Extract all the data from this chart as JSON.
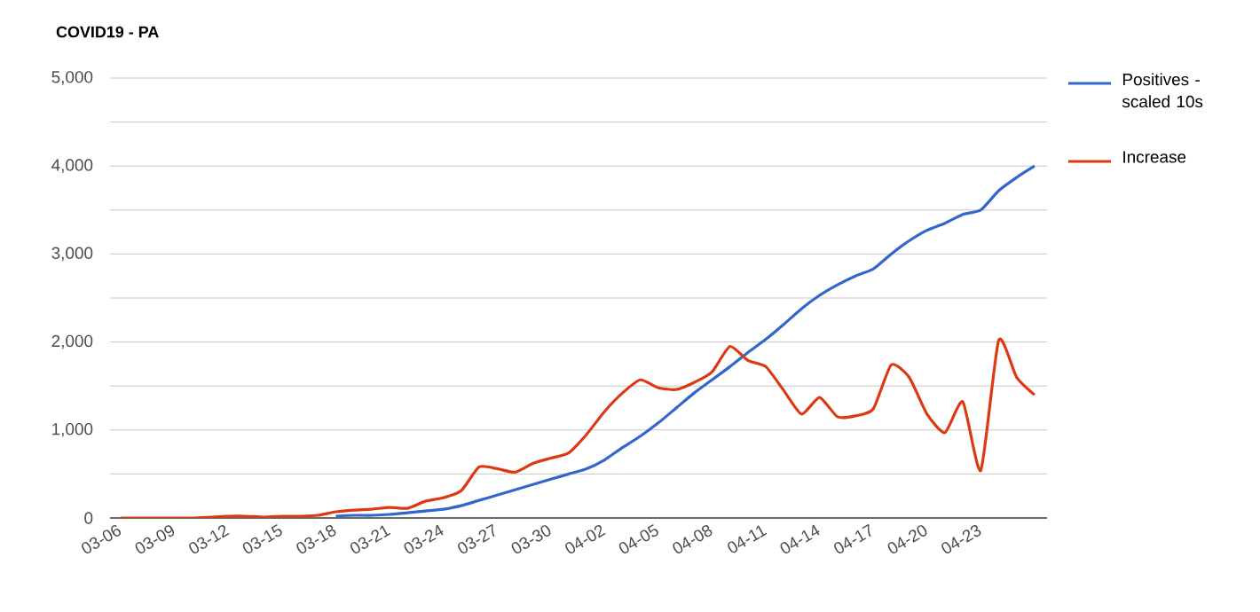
{
  "chart_data": {
    "type": "line",
    "title": "COVID19 - PA",
    "categories": [
      "03-06",
      null,
      null,
      "03-09",
      null,
      null,
      "03-12",
      null,
      null,
      "03-15",
      null,
      null,
      "03-18",
      null,
      null,
      "03-21",
      null,
      null,
      "03-24",
      null,
      null,
      "03-27",
      null,
      null,
      "03-30",
      null,
      null,
      "04-02",
      null,
      null,
      "04-05",
      null,
      null,
      "04-08",
      null,
      null,
      "04-11",
      null,
      null,
      "04-14",
      null,
      null,
      "04-17",
      null,
      null,
      "04-20",
      null,
      null,
      "04-23",
      null,
      null,
      null
    ],
    "series": [
      {
        "name": "Positives - scaled 10s",
        "color": "#3366cc",
        "values": [
          null,
          null,
          null,
          null,
          null,
          null,
          null,
          null,
          null,
          null,
          null,
          null,
          20,
          30,
          30,
          40,
          60,
          80,
          100,
          140,
          200,
          260,
          320,
          380,
          440,
          500,
          560,
          660,
          800,
          930,
          1080,
          1250,
          1420,
          1570,
          1720,
          1880,
          2030,
          2200,
          2380,
          2530,
          2650,
          2750,
          2830,
          3000,
          3150,
          3270,
          3350,
          3450,
          3500,
          3720,
          3870,
          4000
        ]
      },
      {
        "name": "Increase",
        "color": "#dc3912",
        "values": [
          0,
          0,
          0,
          0,
          0,
          10,
          20,
          20,
          10,
          20,
          20,
          30,
          70,
          90,
          100,
          120,
          110,
          190,
          230,
          310,
          580,
          560,
          520,
          620,
          680,
          740,
          950,
          1210,
          1420,
          1570,
          1480,
          1460,
          1540,
          1660,
          1950,
          1790,
          1720,
          1450,
          1180,
          1370,
          1150,
          1160,
          1240,
          1740,
          1600,
          1180,
          970,
          1320,
          540,
          2020,
          1600,
          1400
        ]
      }
    ],
    "ylim": [
      0,
      5000
    ],
    "yticks": [
      0,
      {
        "value": 500,
        "label": null
      },
      {
        "value": 1000,
        "label": "1,000"
      },
      {
        "value": 1500,
        "label": null
      },
      {
        "value": 2000,
        "label": "2,000"
      },
      {
        "value": 2500,
        "label": null
      },
      {
        "value": 3000,
        "label": "3,000"
      },
      {
        "value": 3500,
        "label": null
      },
      {
        "value": 4000,
        "label": "4,000"
      },
      {
        "value": 4500,
        "label": null
      },
      {
        "value": 5000,
        "label": "5,000"
      }
    ],
    "grid": "y",
    "legend": "right",
    "marker": "none",
    "line_style": "solid"
  }
}
